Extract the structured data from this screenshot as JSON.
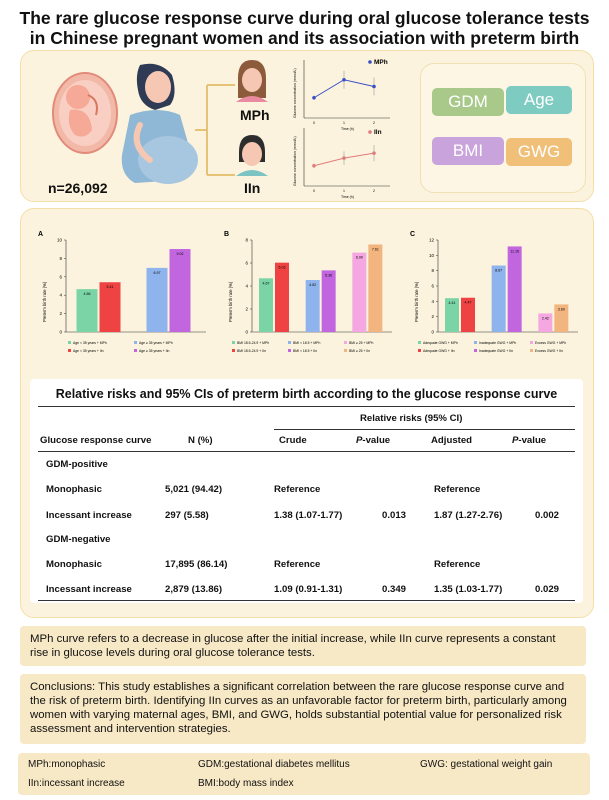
{
  "title": {
    "line1": "The rare glucose response curve during oral glucose tolerance tests",
    "line2": "in Chinese pregnant women and its association with preterm birth"
  },
  "top": {
    "n": "n=26,092",
    "mph": "MPh",
    "iin": "IIn",
    "factors": [
      "GDM",
      "Age",
      "BMI",
      "GWG"
    ],
    "mini_chart_mph": {
      "legend": "MPh",
      "ylabel": "Glucose concentration (mmol/L)",
      "xlabel": "Time (h)",
      "x": [
        "0",
        "1",
        "2"
      ],
      "y": [
        4.5,
        8.5,
        7.0
      ],
      "err": [
        0.5,
        2.0,
        2.0
      ]
    },
    "mini_chart_iin": {
      "legend": "IIn",
      "ylabel": "Glucose concentration (mmol/L)",
      "xlabel": "Time (h)",
      "x": [
        "0",
        "1",
        "2"
      ],
      "y": [
        4.5,
        6.2,
        7.3
      ],
      "err": [
        0.5,
        1.5,
        1.8
      ]
    }
  },
  "colors": {
    "gdm": "#a8c98a",
    "age": "#7ecbc2",
    "bmi": "#c9a4dc",
    "gwg": "#f0c079",
    "panel": "#fbf3dd",
    "note": "#f8e9c6"
  },
  "chart_data": [
    {
      "type": "bar",
      "panel": "A",
      "ylabel": "Preterm birth rate (%)",
      "ylim": [
        0,
        10
      ],
      "yticks": [
        0,
        2,
        4,
        6,
        8,
        10
      ],
      "bars": [
        {
          "value": 4.66,
          "label": "4.66",
          "color": "#7bd4a6"
        },
        {
          "value": 5.41,
          "label": "5.41",
          "color": "#ef4343"
        },
        {
          "value": 6.97,
          "label": "6.97",
          "color": "#8fb3ec"
        },
        {
          "value": 9.02,
          "label": "9.02",
          "color": "#c266e0"
        }
      ],
      "legend": [
        "Age < 35 years + MPh",
        "Age < 35 years + IIn",
        "Age ≥ 35 years + MPh",
        "Age ≥ 35 years + IIn"
      ]
    },
    {
      "type": "bar",
      "panel": "B",
      "ylabel": "Preterm birth rate (%)",
      "ylim": [
        0,
        8
      ],
      "yticks": [
        0,
        2,
        4,
        6,
        8
      ],
      "bars": [
        {
          "value": 4.67,
          "label": "4.67",
          "color": "#7bd4a6"
        },
        {
          "value": 6.03,
          "label": "6.03",
          "color": "#ef4343"
        },
        {
          "value": 4.52,
          "label": "4.52",
          "color": "#8fb3ec"
        },
        {
          "value": 5.36,
          "label": "5.36",
          "color": "#c266e0"
        },
        {
          "value": 6.9,
          "label": "6.90",
          "color": "#f4a7e0"
        },
        {
          "value": 7.61,
          "label": "7.61",
          "color": "#f3b580"
        }
      ],
      "legend": [
        "BMI 18.5-24.9 + MPh",
        "BMI 18.5-24.9 + IIn",
        "BMI < 18.5 + MPh",
        "BMI < 18.5 + IIn",
        "BMI ≥ 25 + MPh",
        "BMI ≥ 25 + IIn"
      ]
    },
    {
      "type": "bar",
      "panel": "C",
      "ylabel": "Preterm birth rate (%)",
      "ylim": [
        0,
        12
      ],
      "yticks": [
        0,
        2,
        4,
        6,
        8,
        10,
        12
      ],
      "bars": [
        {
          "value": 4.41,
          "label": "4.41",
          "color": "#7bd4a6"
        },
        {
          "value": 4.47,
          "label": "4.47",
          "color": "#ef4343"
        },
        {
          "value": 8.67,
          "label": "8.67",
          "color": "#8fb3ec"
        },
        {
          "value": 11.16,
          "label": "11.16",
          "color": "#c266e0"
        },
        {
          "value": 2.42,
          "label": "2.42",
          "color": "#f4a7e0"
        },
        {
          "value": 3.6,
          "label": "3.60",
          "color": "#f3b580"
        }
      ],
      "legend": [
        "Adequate GWG + MPh",
        "Adequate GWG + IIn",
        "Inadequate GWG + MPh",
        "Inadequate GWG + IIn",
        "Excess GWG + MPh",
        "Excess GWG + IIn"
      ]
    }
  ],
  "table": {
    "title": "Relative risks and 95% CIs of preterm birth according to the glucose response curve",
    "rr_header": "Relative risks (95% CI)",
    "headers": {
      "curve": "Glucose response curve",
      "n": "N (%)",
      "crude": "Crude",
      "p1_italic": "P",
      "p1_rest": "-value",
      "adjusted": "Adjusted",
      "p2_italic": "P",
      "p2_rest": "-value"
    },
    "groups": [
      {
        "name": "GDM-positive",
        "rows": [
          {
            "curve": "Monophasic",
            "n": "5,021 (94.42)",
            "crude": "Reference",
            "p1": "",
            "adjusted": "Reference",
            "p2": ""
          },
          {
            "curve": "Incessant increase",
            "n": "297 (5.58)",
            "crude": "1.38 (1.07-1.77)",
            "p1": "0.013",
            "adjusted": "1.87 (1.27-2.76)",
            "p2": "0.002"
          }
        ]
      },
      {
        "name": "GDM-negative",
        "rows": [
          {
            "curve": "Monophasic",
            "n": "17,895 (86.14)",
            "crude": "Reference",
            "p1": "",
            "adjusted": "Reference",
            "p2": ""
          },
          {
            "curve": "Incessant increase",
            "n": "2,879 (13.86)",
            "crude": "1.09 (0.91-1.31)",
            "p1": "0.349",
            "adjusted": "1.35 (1.03-1.77)",
            "p2": "0.029"
          }
        ]
      }
    ]
  },
  "notes": {
    "definition": "MPh curve refers to a decrease in glucose after the initial increase, while IIn curve represents a constant rise in glucose levels during oral glucose tolerance tests.",
    "conclusion": "Conclusions: This study establishes a significant correlation between the rare glucose response curve and the risk of preterm birth. Identifying IIn curves as an unfavorable factor for preterm birth, particularly among women with varying maternal ages, BMI, and GWG, holds substantial potential value for personalized risk assessment and intervention strategies."
  },
  "abbreviations": {
    "mph": "MPh:monophasic",
    "gdm": "GDM:gestational diabetes mellitus",
    "gwg": "GWG: gestational weight gain",
    "iin": "IIn:incessant increase",
    "bmi": "BMI:body mass index"
  }
}
